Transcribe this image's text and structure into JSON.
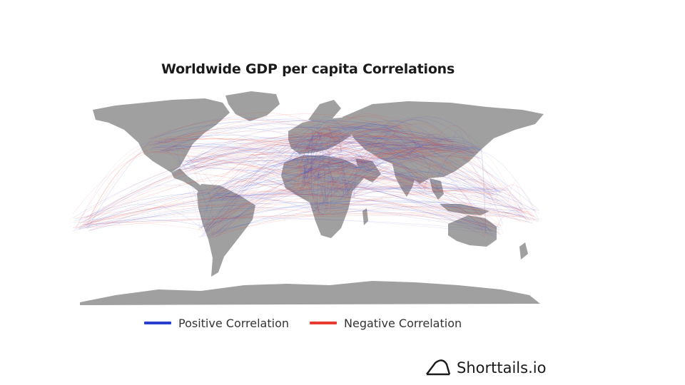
{
  "title": "Worldwide GDP per capita Correlations",
  "legend": {
    "positive": {
      "label": "Positive Correlation",
      "color": "#2b3fcf"
    },
    "negative": {
      "label": "Negative Correlation",
      "color": "#e63b2e"
    }
  },
  "brand": {
    "name": "Shorttails.io",
    "icon": "shark-fin-logo-icon"
  },
  "map": {
    "land_color": "#a0a0a0",
    "projection": "equirectangular"
  }
}
